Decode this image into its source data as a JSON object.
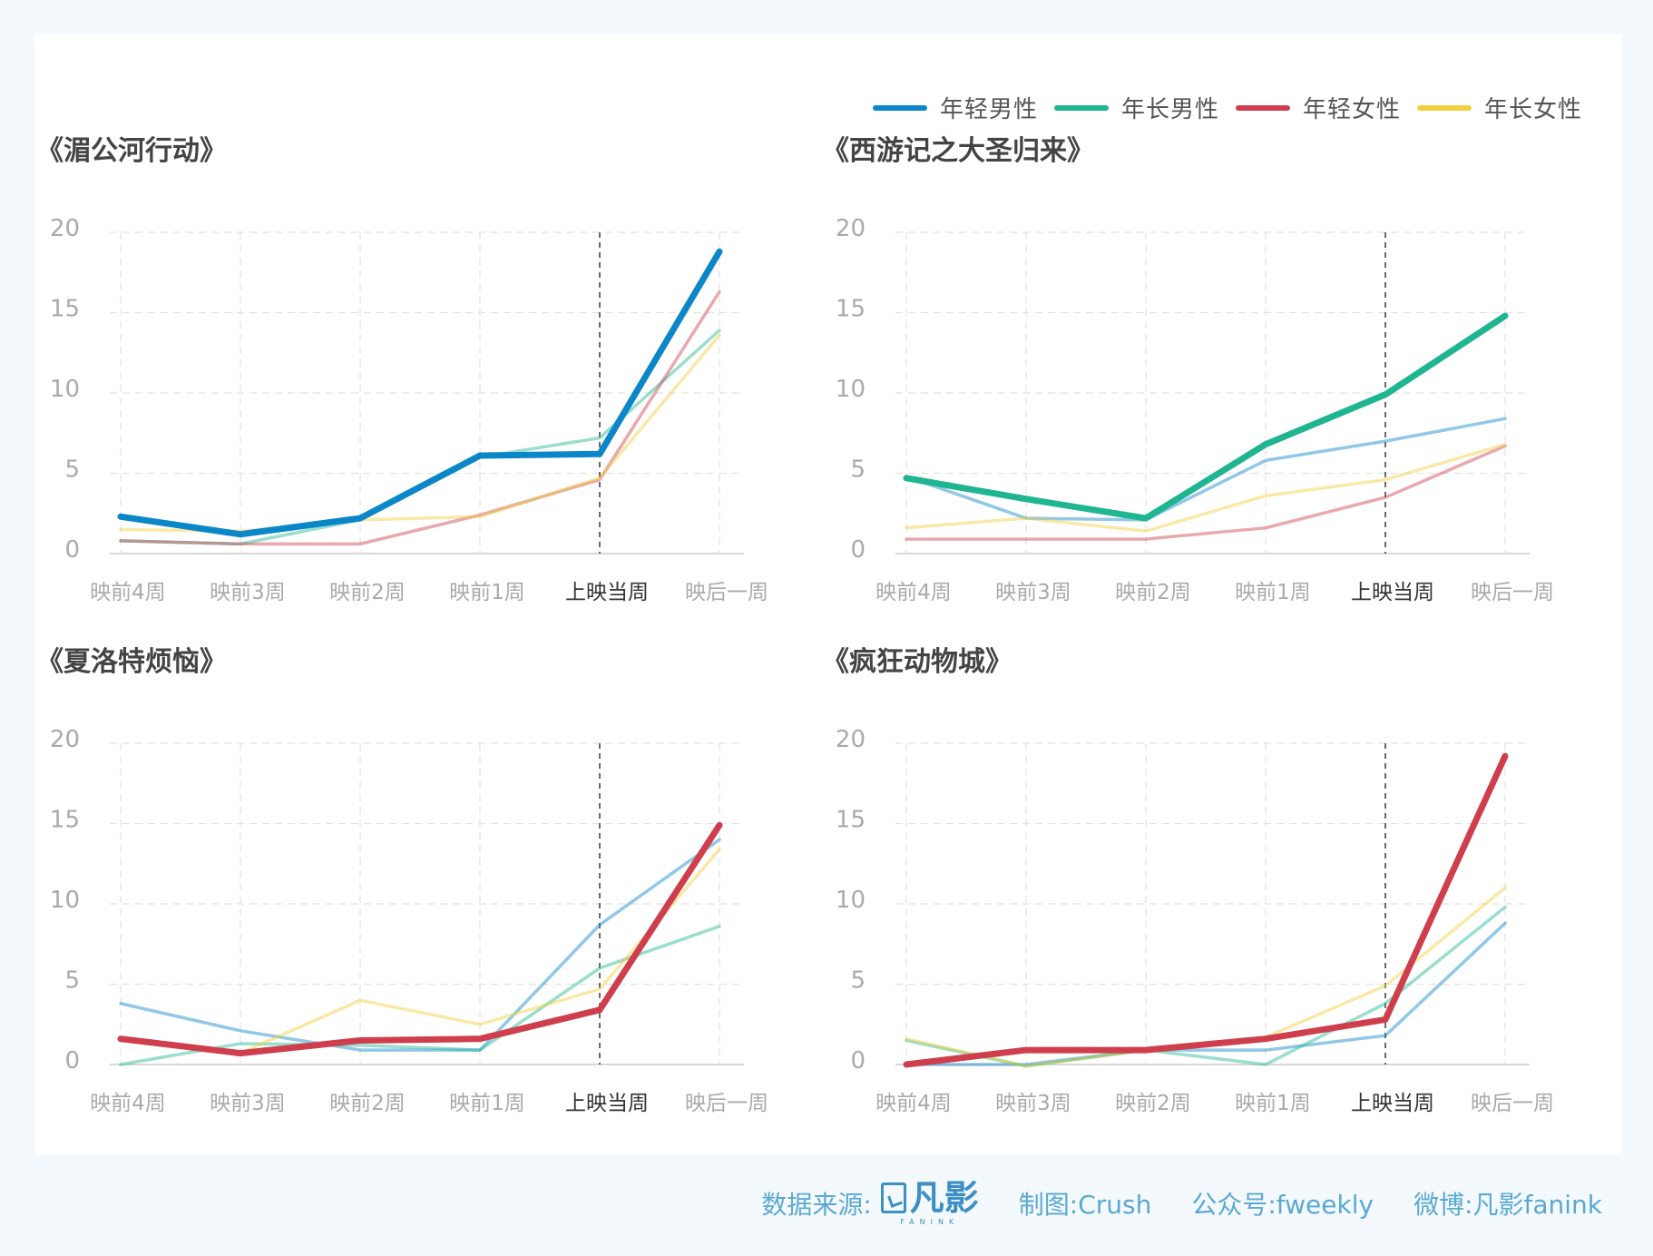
{
  "colors": {
    "young_male": "#0a86c9",
    "old_male": "#1fb590",
    "young_female": "#cf3e4c",
    "old_female": "#f2cf3c"
  },
  "legend": [
    {
      "label": "年轻男性",
      "color": "#0a86c9"
    },
    {
      "label": "年长男性",
      "color": "#1fb590"
    },
    {
      "label": "年轻女性",
      "color": "#cf3e4c"
    },
    {
      "label": "年长女性",
      "color": "#f2cf3c"
    }
  ],
  "footer": {
    "source_label": "数据来源:",
    "logo_text": "凡影",
    "logo_sub": "FANINK",
    "maker": "制图:Crush",
    "account": "公众号:fweekly",
    "weibo": "微博:凡影fanink"
  },
  "chart_data": [
    {
      "type": "line",
      "title": "《湄公河行动》",
      "categories": [
        "映前4周",
        "映前3周",
        "映前2周",
        "映前1周",
        "上映当周",
        "映后一周"
      ],
      "ylim": [
        0,
        20
      ],
      "yticks": [
        0,
        5,
        10,
        15,
        20
      ],
      "release_week": "上映当周",
      "highlight": "年轻男性",
      "series": [
        {
          "name": "年轻男性",
          "color": "#0a86c9",
          "values": [
            2.3,
            1.2,
            2.2,
            6.1,
            6.2,
            18.8
          ]
        },
        {
          "name": "年长男性",
          "color": "#1fb590",
          "values": [
            0.8,
            0.6,
            2.1,
            6.0,
            7.2,
            13.9
          ]
        },
        {
          "name": "年轻女性",
          "color": "#cf3e4c",
          "values": [
            0.8,
            0.6,
            0.6,
            2.4,
            4.6,
            16.3
          ]
        },
        {
          "name": "年长女性",
          "color": "#f2cf3c",
          "values": [
            1.5,
            1.4,
            2.1,
            2.3,
            4.7,
            13.6
          ]
        }
      ]
    },
    {
      "type": "line",
      "title": "《西游记之大圣归来》",
      "categories": [
        "映前4周",
        "映前3周",
        "映前2周",
        "映前1周",
        "上映当周",
        "映后一周"
      ],
      "ylim": [
        0,
        20
      ],
      "yticks": [
        0,
        5,
        10,
        15,
        20
      ],
      "release_week": "上映当周",
      "highlight": "年长男性",
      "series": [
        {
          "name": "年轻男性",
          "color": "#0a86c9",
          "values": [
            4.8,
            2.2,
            2.1,
            5.8,
            7.0,
            8.4
          ]
        },
        {
          "name": "年长男性",
          "color": "#1fb590",
          "values": [
            4.7,
            3.4,
            2.2,
            6.8,
            9.9,
            14.8
          ]
        },
        {
          "name": "年轻女性",
          "color": "#cf3e4c",
          "values": [
            0.9,
            0.9,
            0.9,
            1.6,
            3.5,
            6.7
          ]
        },
        {
          "name": "年长女性",
          "color": "#f2cf3c",
          "values": [
            1.6,
            2.2,
            1.4,
            3.6,
            4.6,
            6.8
          ]
        }
      ]
    },
    {
      "type": "line",
      "title": "《夏洛特烦恼》",
      "categories": [
        "映前4周",
        "映前3周",
        "映前2周",
        "映前1周",
        "上映当周",
        "映后一周"
      ],
      "ylim": [
        0,
        20
      ],
      "yticks": [
        0,
        5,
        10,
        15,
        20
      ],
      "release_week": "上映当周",
      "highlight": "年轻女性",
      "series": [
        {
          "name": "年轻男性",
          "color": "#0a86c9",
          "values": [
            3.8,
            2.1,
            0.9,
            0.9,
            8.7,
            14.0
          ]
        },
        {
          "name": "年长男性",
          "color": "#1fb590",
          "values": [
            0.0,
            1.3,
            1.2,
            0.9,
            6.0,
            8.6
          ]
        },
        {
          "name": "年轻女性",
          "color": "#cf3e4c",
          "values": [
            1.6,
            0.7,
            1.5,
            1.6,
            3.4,
            14.9
          ]
        },
        {
          "name": "年长女性",
          "color": "#f2cf3c",
          "values": [
            1.5,
            0.7,
            4.0,
            2.5,
            4.7,
            13.4
          ]
        }
      ]
    },
    {
      "type": "line",
      "title": "《疯狂动物城》",
      "categories": [
        "映前4周",
        "映前3周",
        "映前2周",
        "映前1周",
        "上映当周",
        "映后一周"
      ],
      "ylim": [
        0,
        20
      ],
      "yticks": [
        0,
        5,
        10,
        15,
        20
      ],
      "release_week": "上映当周",
      "highlight": "年轻女性",
      "series": [
        {
          "name": "年轻男性",
          "color": "#0a86c9",
          "values": [
            0.0,
            0.0,
            0.9,
            0.9,
            1.8,
            8.8
          ]
        },
        {
          "name": "年长男性",
          "color": "#1fb590",
          "values": [
            1.5,
            -0.1,
            0.9,
            0.0,
            3.8,
            9.8
          ]
        },
        {
          "name": "年轻女性",
          "color": "#cf3e4c",
          "values": [
            0.0,
            0.9,
            0.9,
            1.6,
            2.8,
            19.2
          ]
        },
        {
          "name": "年长女性",
          "color": "#f2cf3c",
          "values": [
            1.6,
            -0.1,
            0.9,
            1.7,
            4.9,
            11.0
          ]
        }
      ]
    }
  ]
}
